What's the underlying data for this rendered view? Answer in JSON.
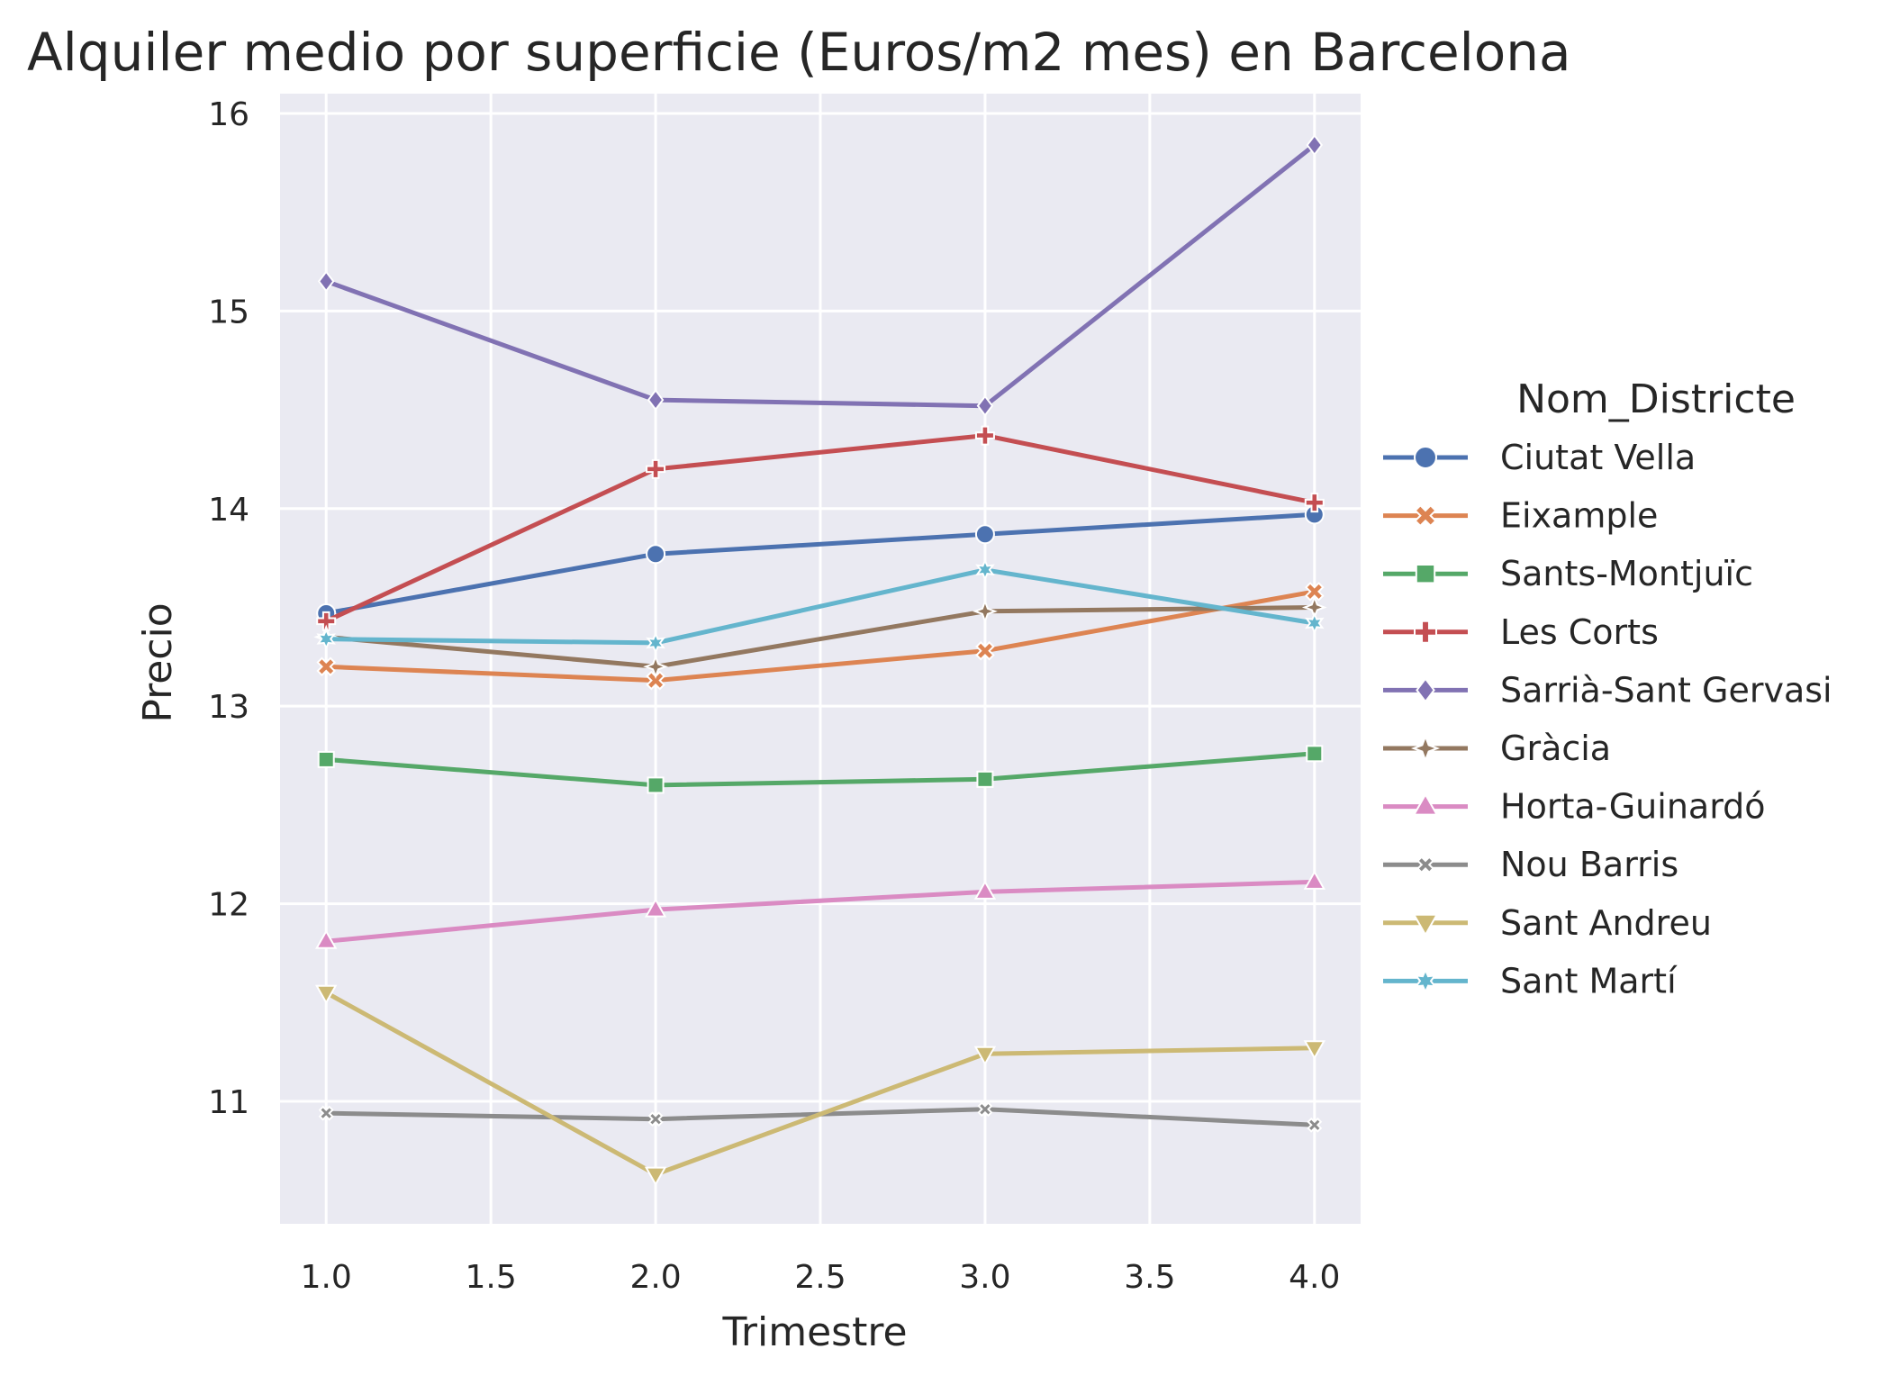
{
  "chart_data": {
    "type": "line",
    "title": "Alquiler medio por superficie (Euros/m2 mes) en Barcelona",
    "xlabel": "Trimestre",
    "ylabel": "Precio",
    "xlim": [
      0.86,
      4.14
    ],
    "ylim": [
      10.38,
      16.1
    ],
    "xticks": [
      "1.0",
      "1.5",
      "2.0",
      "2.5",
      "3.0",
      "3.5",
      "4.0"
    ],
    "yticks": [
      "11",
      "12",
      "13",
      "14",
      "15",
      "16"
    ],
    "grid": true,
    "legend_position": "right",
    "legend_title": "Nom_Districte",
    "x": [
      1,
      2,
      3,
      4
    ],
    "series": [
      {
        "name": "Ciutat Vella",
        "color": "#4c72b0",
        "marker": "circle",
        "values": [
          13.47,
          13.77,
          13.87,
          13.97
        ]
      },
      {
        "name": "Eixample",
        "color": "#dd8452",
        "marker": "x",
        "values": [
          13.2,
          13.13,
          13.28,
          13.58
        ]
      },
      {
        "name": "Sants-Montjuïc",
        "color": "#55a868",
        "marker": "square",
        "values": [
          12.73,
          12.6,
          12.63,
          12.76
        ]
      },
      {
        "name": "Les Corts",
        "color": "#c44e52",
        "marker": "plus",
        "values": [
          13.43,
          14.2,
          14.37,
          14.03
        ]
      },
      {
        "name": "Sarrià-Sant Gervasi",
        "color": "#8172b3",
        "marker": "diamond",
        "values": [
          15.15,
          14.55,
          14.52,
          15.84
        ]
      },
      {
        "name": "Gràcia",
        "color": "#937860",
        "marker": "star4",
        "values": [
          13.35,
          13.2,
          13.48,
          13.5
        ]
      },
      {
        "name": "Horta-Guinardó",
        "color": "#da8bc3",
        "marker": "triangle-up",
        "values": [
          11.81,
          11.97,
          12.06,
          12.11
        ]
      },
      {
        "name": "Nou Barris",
        "color": "#8c8c8c",
        "marker": "xsmall",
        "values": [
          10.94,
          10.91,
          10.96,
          10.88
        ]
      },
      {
        "name": "Sant Andreu",
        "color": "#ccb974",
        "marker": "triangle-down",
        "values": [
          11.55,
          10.63,
          11.24,
          11.27
        ]
      },
      {
        "name": "Sant Martí",
        "color": "#64b5cd",
        "marker": "star6",
        "values": [
          13.34,
          13.32,
          13.69,
          13.42
        ]
      }
    ]
  }
}
